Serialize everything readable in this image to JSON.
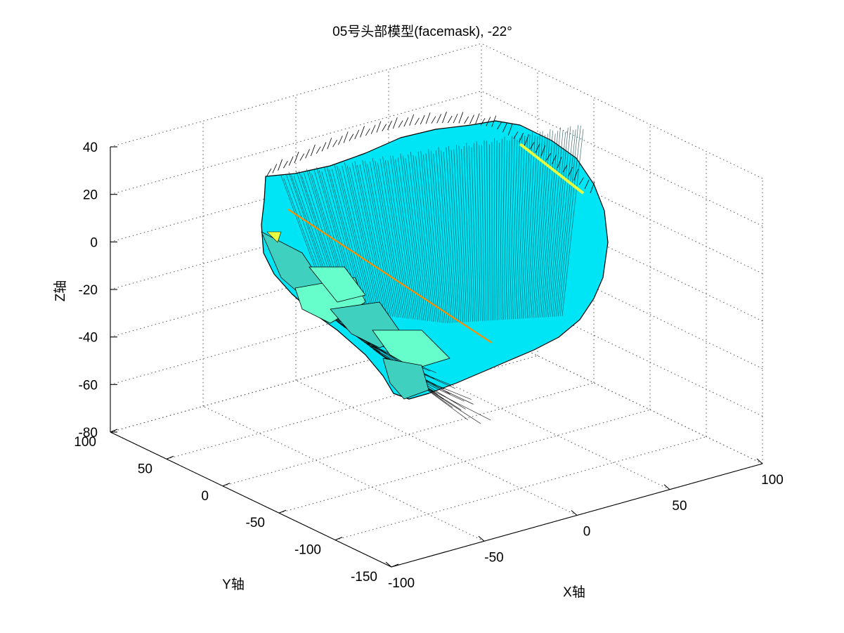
{
  "chart_data": {
    "type": "surface3d",
    "title": "05号头部模型(facemask), -22°",
    "xlabel": "X轴",
    "ylabel": "Y轴",
    "zlabel": "Z轴",
    "xlim": [
      -100,
      100
    ],
    "ylim": [
      -150,
      100
    ],
    "zlim": [
      -80,
      40
    ],
    "xticks": [
      "-100",
      "-50",
      "0",
      "50",
      "100"
    ],
    "yticks": [
      "-150",
      "-100",
      "-50",
      "0",
      "50",
      "100"
    ],
    "zticks": [
      "-80",
      "-60",
      "-40",
      "-20",
      "0",
      "20",
      "40"
    ],
    "grid": true,
    "view": "3d-oblique",
    "colormap": "jet",
    "colors": {
      "face_main": "#00e5f5",
      "face_light": "#66ffcc",
      "face_yellow": "#e6ff40",
      "face_orange": "#ff8c00",
      "edge": "#000000",
      "grid": "#555555"
    }
  }
}
